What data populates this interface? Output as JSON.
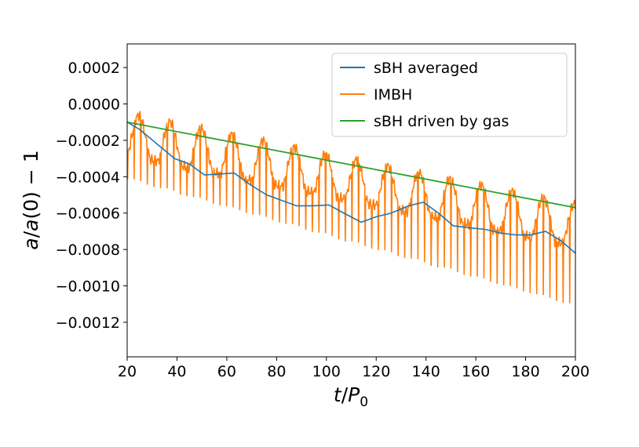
{
  "chart_data": {
    "type": "line",
    "xlabel": "t/P0",
    "ylabel": "a/a(0) − 1",
    "xlim": [
      20,
      200
    ],
    "ylim": [
      -0.00139,
      0.00033
    ],
    "x_ticks": [
      20,
      40,
      60,
      80,
      100,
      120,
      140,
      160,
      180,
      200
    ],
    "x_tick_labels": [
      "20",
      "40",
      "60",
      "80",
      "100",
      "120",
      "140",
      "160",
      "180",
      "200"
    ],
    "y_ticks": [
      0.0002,
      0.0,
      -0.0002,
      -0.0004,
      -0.0006,
      -0.0008,
      -0.001,
      -0.0012
    ],
    "y_tick_labels": [
      "0.0002",
      "0.0000",
      "−0.0002",
      "−0.0004",
      "−0.0006",
      "−0.0008",
      "−0.0010",
      "−0.0012"
    ],
    "grid": false,
    "legend_position": "top-right",
    "series": [
      {
        "name": "sBH averaged",
        "color": "#1f77b4",
        "x": [
          20,
          25,
          32,
          39,
          45,
          51,
          57,
          63,
          69,
          76,
          82,
          88,
          95,
          101,
          107,
          114,
          120,
          126,
          133,
          139,
          145,
          151,
          157,
          164,
          170,
          176,
          182,
          188,
          194,
          200
        ],
        "y": [
          -0.0001,
          -0.00014,
          -0.00022,
          -0.0003,
          -0.00033,
          -0.00039,
          -0.000385,
          -0.00038,
          -0.00044,
          -0.0005,
          -0.00053,
          -0.00056,
          -0.00056,
          -0.000555,
          -0.0006,
          -0.00065,
          -0.00062,
          -0.0006,
          -0.00056,
          -0.00054,
          -0.0006,
          -0.00067,
          -0.00068,
          -0.00069,
          -0.00071,
          -0.00072,
          -0.00072,
          -0.0007,
          -0.00075,
          -0.00082
        ]
      },
      {
        "name": "IMBH",
        "color": "#ff7f0e",
        "x_start": 20,
        "x_end": 200,
        "dip_period": 2.65,
        "envelope_period": 12.5,
        "upper_start": -5e-05,
        "upper_end": -0.00055,
        "envelope_amplitude": 0.00023,
        "lower_start": -0.00042,
        "lower_end": -0.00113
      },
      {
        "name": "sBH driven by gas",
        "color": "#2ca02c",
        "x": [
          20,
          200
        ],
        "y": [
          -0.0001,
          -0.00057
        ]
      }
    ]
  }
}
